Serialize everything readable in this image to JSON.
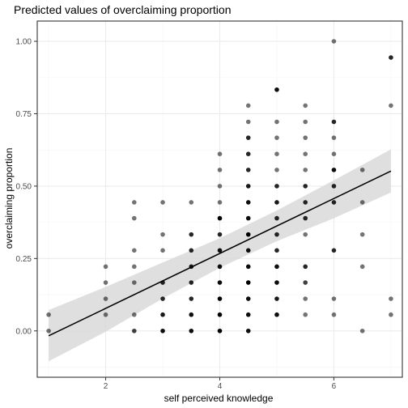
{
  "chart_data": {
    "type": "scatter",
    "title": "Predicted values of overclaiming proportion",
    "xlabel": "self perceived knowledge",
    "ylabel": "overclaiming proportion",
    "xlim": [
      0.8,
      7.2
    ],
    "ylim": [
      -0.16,
      1.07
    ],
    "x_ticks": [
      2,
      4,
      6
    ],
    "y_ticks": [
      0.0,
      0.25,
      0.5,
      0.75,
      1.0
    ],
    "y_tick_labels": [
      "0.00",
      "0.25",
      "0.50",
      "0.75",
      "1.00"
    ],
    "grid": true,
    "legend": "none",
    "colors": {
      "panel_border": "#333333",
      "grid_major": "#ebebeb",
      "grid_minor": "#f5f5f5",
      "ribbon": "#d9d9d9",
      "line": "#000000",
      "point": "#000000"
    },
    "fit_line": {
      "x": [
        1.0,
        7.0
      ],
      "y": [
        -0.017,
        0.552
      ]
    },
    "confidence_band": {
      "x": [
        1.0,
        2.0,
        3.0,
        4.0,
        5.0,
        6.0,
        7.0
      ],
      "lower": [
        -0.105,
        -0.003,
        0.112,
        0.218,
        0.31,
        0.389,
        0.478
      ],
      "upper": [
        0.072,
        0.152,
        0.236,
        0.32,
        0.416,
        0.52,
        0.627
      ]
    },
    "points": [
      {
        "x": 1,
        "y": 0.056,
        "o": 0.55
      },
      {
        "x": 1,
        "y": 0.0,
        "o": 0.55
      },
      {
        "x": 2,
        "y": 0.222,
        "o": 0.55
      },
      {
        "x": 2,
        "y": 0.167,
        "o": 0.55
      },
      {
        "x": 2,
        "y": 0.111,
        "o": 0.55
      },
      {
        "x": 2,
        "y": 0.056,
        "o": 0.55
      },
      {
        "x": 2.5,
        "y": 0.444,
        "o": 0.55
      },
      {
        "x": 2.5,
        "y": 0.389,
        "o": 0.55
      },
      {
        "x": 2.5,
        "y": 0.278,
        "o": 0.55
      },
      {
        "x": 2.5,
        "y": 0.222,
        "o": 0.55
      },
      {
        "x": 2.5,
        "y": 0.167,
        "o": 0.55
      },
      {
        "x": 2.5,
        "y": 0.056,
        "o": 0.55
      },
      {
        "x": 2.5,
        "y": 0.0,
        "o": 0.75
      },
      {
        "x": 3,
        "y": 0.444,
        "o": 0.55
      },
      {
        "x": 3,
        "y": 0.333,
        "o": 0.55
      },
      {
        "x": 3,
        "y": 0.278,
        "o": 0.55
      },
      {
        "x": 3,
        "y": 0.167,
        "o": 0.85
      },
      {
        "x": 3,
        "y": 0.111,
        "o": 0.85
      },
      {
        "x": 3,
        "y": 0.056,
        "o": 0.9
      },
      {
        "x": 3,
        "y": 0.0,
        "o": 0.95
      },
      {
        "x": 3.5,
        "y": 0.444,
        "o": 0.55
      },
      {
        "x": 3.5,
        "y": 0.333,
        "o": 0.85
      },
      {
        "x": 3.5,
        "y": 0.278,
        "o": 0.85
      },
      {
        "x": 3.5,
        "y": 0.222,
        "o": 0.9
      },
      {
        "x": 3.5,
        "y": 0.167,
        "o": 0.85
      },
      {
        "x": 3.5,
        "y": 0.111,
        "o": 0.85
      },
      {
        "x": 3.5,
        "y": 0.056,
        "o": 0.95
      },
      {
        "x": 3.5,
        "y": 0.0,
        "o": 0.95
      },
      {
        "x": 4,
        "y": 0.611,
        "o": 0.55
      },
      {
        "x": 4,
        "y": 0.556,
        "o": 0.55
      },
      {
        "x": 4,
        "y": 0.5,
        "o": 0.55
      },
      {
        "x": 4,
        "y": 0.444,
        "o": 0.55
      },
      {
        "x": 4,
        "y": 0.389,
        "o": 1.0
      },
      {
        "x": 4,
        "y": 0.333,
        "o": 0.85
      },
      {
        "x": 4,
        "y": 0.278,
        "o": 0.95
      },
      {
        "x": 4,
        "y": 0.222,
        "o": 0.95
      },
      {
        "x": 4,
        "y": 0.167,
        "o": 0.95
      },
      {
        "x": 4,
        "y": 0.111,
        "o": 1.0
      },
      {
        "x": 4,
        "y": 0.056,
        "o": 1.0
      },
      {
        "x": 4,
        "y": 0.0,
        "o": 1.0
      },
      {
        "x": 4.5,
        "y": 0.778,
        "o": 0.55
      },
      {
        "x": 4.5,
        "y": 0.722,
        "o": 0.55
      },
      {
        "x": 4.5,
        "y": 0.667,
        "o": 0.85
      },
      {
        "x": 4.5,
        "y": 0.611,
        "o": 0.85
      },
      {
        "x": 4.5,
        "y": 0.556,
        "o": 0.85
      },
      {
        "x": 4.5,
        "y": 0.5,
        "o": 0.9
      },
      {
        "x": 4.5,
        "y": 0.444,
        "o": 0.95
      },
      {
        "x": 4.5,
        "y": 0.389,
        "o": 0.95
      },
      {
        "x": 4.5,
        "y": 0.333,
        "o": 1.0
      },
      {
        "x": 4.5,
        "y": 0.278,
        "o": 0.95
      },
      {
        "x": 4.5,
        "y": 0.222,
        "o": 0.95
      },
      {
        "x": 4.5,
        "y": 0.167,
        "o": 1.0
      },
      {
        "x": 4.5,
        "y": 0.111,
        "o": 0.95
      },
      {
        "x": 4.5,
        "y": 0.056,
        "o": 0.95
      },
      {
        "x": 4.5,
        "y": 0.0,
        "o": 0.95
      },
      {
        "x": 5,
        "y": 0.833,
        "o": 0.95
      },
      {
        "x": 5,
        "y": 0.722,
        "o": 0.55
      },
      {
        "x": 5,
        "y": 0.667,
        "o": 0.55
      },
      {
        "x": 5,
        "y": 0.611,
        "o": 0.55
      },
      {
        "x": 5,
        "y": 0.556,
        "o": 0.55
      },
      {
        "x": 5,
        "y": 0.5,
        "o": 0.85
      },
      {
        "x": 5,
        "y": 0.444,
        "o": 0.9
      },
      {
        "x": 5,
        "y": 0.389,
        "o": 0.85
      },
      {
        "x": 5,
        "y": 0.333,
        "o": 0.85
      },
      {
        "x": 5,
        "y": 0.278,
        "o": 0.85
      },
      {
        "x": 5,
        "y": 0.222,
        "o": 0.95
      },
      {
        "x": 5,
        "y": 0.167,
        "o": 0.95
      },
      {
        "x": 5,
        "y": 0.111,
        "o": 0.9
      },
      {
        "x": 5,
        "y": 0.056,
        "o": 0.95
      },
      {
        "x": 5.5,
        "y": 0.778,
        "o": 0.55
      },
      {
        "x": 5.5,
        "y": 0.722,
        "o": 0.55
      },
      {
        "x": 5.5,
        "y": 0.667,
        "o": 0.55
      },
      {
        "x": 5.5,
        "y": 0.611,
        "o": 0.55
      },
      {
        "x": 5.5,
        "y": 0.556,
        "o": 0.55
      },
      {
        "x": 5.5,
        "y": 0.5,
        "o": 0.85
      },
      {
        "x": 5.5,
        "y": 0.444,
        "o": 0.85
      },
      {
        "x": 5.5,
        "y": 0.389,
        "o": 0.85
      },
      {
        "x": 5.5,
        "y": 0.333,
        "o": 0.55
      },
      {
        "x": 5.5,
        "y": 0.222,
        "o": 0.85
      },
      {
        "x": 5.5,
        "y": 0.167,
        "o": 0.75
      },
      {
        "x": 5.5,
        "y": 0.111,
        "o": 0.55
      },
      {
        "x": 5.5,
        "y": 0.056,
        "o": 0.55
      },
      {
        "x": 6,
        "y": 1.0,
        "o": 0.55
      },
      {
        "x": 6,
        "y": 0.722,
        "o": 0.85
      },
      {
        "x": 6,
        "y": 0.667,
        "o": 0.55
      },
      {
        "x": 6,
        "y": 0.611,
        "o": 0.55
      },
      {
        "x": 6,
        "y": 0.556,
        "o": 0.95
      },
      {
        "x": 6,
        "y": 0.5,
        "o": 0.85
      },
      {
        "x": 6,
        "y": 0.444,
        "o": 0.85
      },
      {
        "x": 6,
        "y": 0.278,
        "o": 0.85
      },
      {
        "x": 6,
        "y": 0.111,
        "o": 0.55
      },
      {
        "x": 6,
        "y": 0.056,
        "o": 0.55
      },
      {
        "x": 6.5,
        "y": 0.556,
        "o": 0.55
      },
      {
        "x": 6.5,
        "y": 0.444,
        "o": 0.55
      },
      {
        "x": 6.5,
        "y": 0.333,
        "o": 0.55
      },
      {
        "x": 6.5,
        "y": 0.222,
        "o": 0.55
      },
      {
        "x": 6.5,
        "y": 0.0,
        "o": 0.55
      },
      {
        "x": 7,
        "y": 0.944,
        "o": 0.85
      },
      {
        "x": 7,
        "y": 0.778,
        "o": 0.55
      },
      {
        "x": 7,
        "y": 0.111,
        "o": 0.55
      },
      {
        "x": 7,
        "y": 0.056,
        "o": 0.55
      }
    ]
  }
}
